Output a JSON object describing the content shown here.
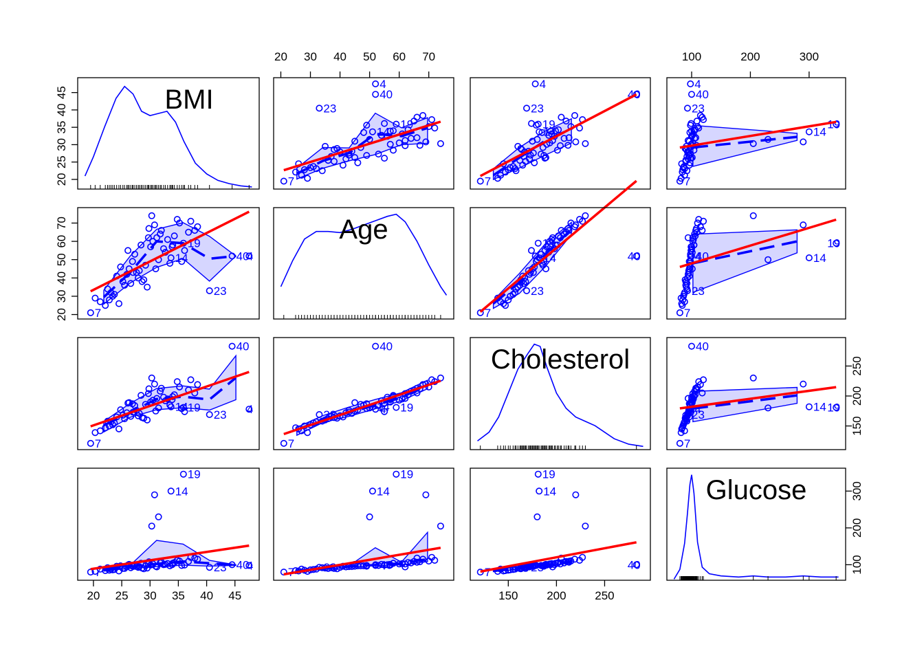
{
  "chart_data": {
    "type": "scatter",
    "variables": [
      "BMI",
      "Age",
      "Cholesterol",
      "Glucose"
    ],
    "axes": {
      "BMI": {
        "range": [
          18.5,
          48
        ],
        "ticks": [
          20,
          25,
          30,
          35,
          40,
          45
        ],
        "tick_labels": [
          "20",
          "25",
          "30",
          "35",
          "40",
          "45"
        ],
        "side": "bottom-left",
        "density": [
          [
            18.5,
            0.12
          ],
          [
            20,
            0.3
          ],
          [
            22,
            0.58
          ],
          [
            24,
            0.84
          ],
          [
            25.5,
            0.95
          ],
          [
            27,
            0.88
          ],
          [
            28.5,
            0.72
          ],
          [
            30,
            0.68
          ],
          [
            31.5,
            0.7
          ],
          [
            33,
            0.72
          ],
          [
            34.5,
            0.62
          ],
          [
            36,
            0.44
          ],
          [
            38,
            0.24
          ],
          [
            40,
            0.14
          ],
          [
            42,
            0.08
          ],
          [
            44,
            0.05
          ],
          [
            46,
            0.03
          ],
          [
            48,
            0.02
          ]
        ]
      },
      "Age": {
        "range": [
          20,
          76
        ],
        "ticks": [
          20,
          30,
          40,
          50,
          60,
          70
        ],
        "tick_labels": [
          "20",
          "30",
          "40",
          "50",
          "60",
          "70"
        ],
        "side": "top-left",
        "density": [
          [
            20,
            0.3
          ],
          [
            24,
            0.54
          ],
          [
            28,
            0.74
          ],
          [
            32,
            0.81
          ],
          [
            36,
            0.81
          ],
          [
            40,
            0.8
          ],
          [
            44,
            0.83
          ],
          [
            48,
            0.87
          ],
          [
            52,
            0.91
          ],
          [
            56,
            0.95
          ],
          [
            59,
            0.97
          ],
          [
            62,
            0.9
          ],
          [
            66,
            0.72
          ],
          [
            70,
            0.5
          ],
          [
            74,
            0.3
          ],
          [
            76,
            0.22
          ]
        ]
      },
      "Cholesterol": {
        "range": [
          118,
          290
        ],
        "ticks": [
          150,
          200,
          250
        ],
        "tick_labels": [
          "150",
          "200",
          "250"
        ],
        "side": "bottom-right",
        "density": [
          [
            118,
            0.08
          ],
          [
            130,
            0.16
          ],
          [
            140,
            0.3
          ],
          [
            150,
            0.52
          ],
          [
            160,
            0.74
          ],
          [
            170,
            0.88
          ],
          [
            177,
            0.97
          ],
          [
            183,
            0.95
          ],
          [
            190,
            0.76
          ],
          [
            200,
            0.52
          ],
          [
            210,
            0.38
          ],
          [
            220,
            0.3
          ],
          [
            230,
            0.26
          ],
          [
            240,
            0.22
          ],
          [
            250,
            0.16
          ],
          [
            260,
            0.1
          ],
          [
            275,
            0.05
          ],
          [
            290,
            0.03
          ]
        ]
      },
      "Glucose": {
        "range": [
          70,
          350
        ],
        "ticks": [
          100,
          200,
          300
        ],
        "tick_labels": [
          "100",
          "200",
          "300"
        ],
        "side": "top-right",
        "density": [
          [
            70,
            0.01
          ],
          [
            80,
            0.1
          ],
          [
            88,
            0.34
          ],
          [
            93,
            0.62
          ],
          [
            97,
            0.88
          ],
          [
            100,
            0.97
          ],
          [
            104,
            0.8
          ],
          [
            110,
            0.35
          ],
          [
            118,
            0.12
          ],
          [
            130,
            0.06
          ],
          [
            150,
            0.04
          ],
          [
            180,
            0.03
          ],
          [
            205,
            0.04
          ],
          [
            230,
            0.03
          ],
          [
            260,
            0.03
          ],
          [
            290,
            0.04
          ],
          [
            320,
            0.03
          ],
          [
            350,
            0.03
          ]
        ]
      }
    },
    "points": [
      {
        "id": "1",
        "BMI": 21.2,
        "Age": 27,
        "Cholesterol": 142,
        "Glucose": 88
      },
      {
        "id": "2",
        "BMI": 22.5,
        "Age": 34,
        "Cholesterol": 158,
        "Glucose": 92
      },
      {
        "id": "3",
        "BMI": 24.1,
        "Age": 41,
        "Cholesterol": 165,
        "Glucose": 96
      },
      {
        "id": "4",
        "BMI": 47.5,
        "Age": 52,
        "Cholesterol": 178,
        "Glucose": 98
      },
      {
        "id": "5",
        "BMI": 26.3,
        "Age": 45,
        "Cholesterol": 189,
        "Glucose": 101
      },
      {
        "id": "6",
        "BMI": 28.4,
        "Age": 58,
        "Cholesterol": 201,
        "Glucose": 104
      },
      {
        "id": "7",
        "BMI": 19.5,
        "Age": 21,
        "Cholesterol": 121,
        "Glucose": 80
      },
      {
        "id": "8",
        "BMI": 31.2,
        "Age": 62,
        "Cholesterol": 196,
        "Glucose": 94
      },
      {
        "id": "9",
        "BMI": 33.5,
        "Age": 48,
        "Cholesterol": 185,
        "Glucose": 97
      },
      {
        "id": "10",
        "BMI": 29.8,
        "Age": 67,
        "Cholesterol": 212,
        "Glucose": 108
      },
      {
        "id": "11",
        "BMI": 36.1,
        "Age": 55,
        "Cholesterol": 174,
        "Glucose": 99
      },
      {
        "id": "12",
        "BMI": 25.2,
        "Age": 38,
        "Cholesterol": 168,
        "Glucose": 90
      },
      {
        "id": "13",
        "BMI": 34.8,
        "Age": 72,
        "Cholesterol": 224,
        "Glucose": 112
      },
      {
        "id": "14",
        "BMI": 33.7,
        "Age": 51,
        "Cholesterol": 182,
        "Glucose": 300
      },
      {
        "id": "15",
        "BMI": 23.4,
        "Age": 30,
        "Cholesterol": 152,
        "Glucose": 86
      },
      {
        "id": "16",
        "BMI": 27.6,
        "Age": 43,
        "Cholesterol": 176,
        "Glucose": 95
      },
      {
        "id": "17",
        "BMI": 30.5,
        "Age": 60,
        "Cholesterol": 193,
        "Glucose": 102
      },
      {
        "id": "18",
        "BMI": 37.9,
        "Age": 66,
        "Cholesterol": 205,
        "Glucose": 118
      },
      {
        "id": "19",
        "BMI": 35.9,
        "Age": 59,
        "Cholesterol": 181,
        "Glucose": 346
      },
      {
        "id": "20",
        "BMI": 22.1,
        "Age": 25,
        "Cholesterol": 147,
        "Glucose": 84
      },
      {
        "id": "21",
        "BMI": 26.9,
        "Age": 49,
        "Cholesterol": 187,
        "Glucose": 96
      },
      {
        "id": "22",
        "BMI": 32.4,
        "Age": 56,
        "Cholesterol": 198,
        "Glucose": 100
      },
      {
        "id": "23",
        "BMI": 40.5,
        "Age": 33,
        "Cholesterol": 169,
        "Glucose": 93
      },
      {
        "id": "24",
        "BMI": 28.9,
        "Age": 39,
        "Cholesterol": 163,
        "Glucose": 89
      },
      {
        "id": "25",
        "BMI": 24.8,
        "Age": 46,
        "Cholesterol": 177,
        "Glucose": 97
      },
      {
        "id": "26",
        "BMI": 31.8,
        "Age": 64,
        "Cholesterol": 208,
        "Glucose": 105
      },
      {
        "id": "27",
        "BMI": 35.2,
        "Age": 70,
        "Cholesterol": 215,
        "Glucose": 110
      },
      {
        "id": "28",
        "BMI": 20.3,
        "Age": 29,
        "Cholesterol": 139,
        "Glucose": 82
      },
      {
        "id": "29",
        "BMI": 27.3,
        "Age": 53,
        "Cholesterol": 184,
        "Glucose": 98
      },
      {
        "id": "30",
        "BMI": 33.1,
        "Age": 61,
        "Cholesterol": 195,
        "Glucose": 103
      },
      {
        "id": "31",
        "BMI": 29.5,
        "Age": 35,
        "Cholesterol": 160,
        "Glucose": 91
      },
      {
        "id": "32",
        "BMI": 25.9,
        "Age": 42,
        "Cholesterol": 172,
        "Glucose": 94
      },
      {
        "id": "33",
        "BMI": 38.4,
        "Age": 68,
        "Cholesterol": 219,
        "Glucose": 115
      },
      {
        "id": "34",
        "BMI": 30.1,
        "Age": 57,
        "Cholesterol": 190,
        "Glucose": 99
      },
      {
        "id": "35",
        "BMI": 23.7,
        "Age": 31,
        "Cholesterol": 155,
        "Glucose": 87
      },
      {
        "id": "36",
        "BMI": 34.3,
        "Age": 63,
        "Cholesterol": 202,
        "Glucose": 106
      },
      {
        "id": "37",
        "BMI": 26.6,
        "Age": 37,
        "Cholesterol": 166,
        "Glucose": 92
      },
      {
        "id": "38",
        "BMI": 31.5,
        "Age": 50,
        "Cholesterol": 180,
        "Glucose": 230
      },
      {
        "id": "39",
        "BMI": 28.1,
        "Age": 44,
        "Cholesterol": 171,
        "Glucose": 95
      },
      {
        "id": "40",
        "BMI": 44.5,
        "Age": 52,
        "Cholesterol": 283,
        "Glucose": 100
      },
      {
        "id": "41",
        "BMI": 22.8,
        "Age": 28,
        "Cholesterol": 150,
        "Glucose": 85
      },
      {
        "id": "42",
        "BMI": 36.8,
        "Age": 65,
        "Cholesterol": 210,
        "Glucose": 109
      },
      {
        "id": "43",
        "BMI": 29.2,
        "Age": 47,
        "Cholesterol": 186,
        "Glucose": 97
      },
      {
        "id": "44",
        "BMI": 32.7,
        "Age": 54,
        "Cholesterol": 192,
        "Glucose": 101
      },
      {
        "id": "45",
        "BMI": 25.5,
        "Age": 36,
        "Cholesterol": 162,
        "Glucose": 90
      },
      {
        "id": "46",
        "BMI": 30.8,
        "Age": 69,
        "Cholesterol": 220,
        "Glucose": 290
      },
      {
        "id": "47",
        "BMI": 34.0,
        "Age": 58,
        "Cholesterol": 199,
        "Glucose": 104
      },
      {
        "id": "48",
        "BMI": 27.9,
        "Age": 40,
        "Cholesterol": 167,
        "Glucose": 93
      },
      {
        "id": "49",
        "BMI": 23.1,
        "Age": 32,
        "Cholesterol": 157,
        "Glucose": 88
      },
      {
        "id": "50",
        "BMI": 37.2,
        "Age": 71,
        "Cholesterol": 227,
        "Glucose": 120
      },
      {
        "id": "51",
        "BMI": 31.0,
        "Age": 45,
        "Cholesterol": 175,
        "Glucose": 96
      },
      {
        "id": "52",
        "BMI": 26.1,
        "Age": 55,
        "Cholesterol": 188,
        "Glucose": 99
      },
      {
        "id": "53",
        "BMI": 29.7,
        "Age": 62,
        "Cholesterol": 204,
        "Glucose": 102
      },
      {
        "id": "54",
        "BMI": 35.6,
        "Age": 49,
        "Cholesterol": 179,
        "Glucose": 98
      },
      {
        "id": "55",
        "BMI": 24.5,
        "Age": 26,
        "Cholesterol": 145,
        "Glucose": 83
      },
      {
        "id": "56",
        "BMI": 32.0,
        "Age": 66,
        "Cholesterol": 213,
        "Glucose": 107
      },
      {
        "id": "57",
        "BMI": 28.6,
        "Age": 38,
        "Cholesterol": 164,
        "Glucose": 91
      },
      {
        "id": "58",
        "BMI": 33.9,
        "Age": 57,
        "Cholesterol": 194,
        "Glucose": 100
      },
      {
        "id": "59",
        "BMI": 27.0,
        "Age": 43,
        "Cholesterol": 173,
        "Glucose": 95
      },
      {
        "id": "60",
        "BMI": 30.3,
        "Age": 74,
        "Cholesterol": 230,
        "Glucose": 205
      }
    ],
    "labeled_points": [
      "4",
      "7",
      "14",
      "19",
      "23",
      "40"
    ],
    "fit_line": {
      "type": "linear",
      "color": "#ff0000"
    },
    "smoother": {
      "type": "loess",
      "color": "#0000ff",
      "band": true
    },
    "point_color": "#0000ff",
    "title": "",
    "grid": false,
    "legend": "none"
  }
}
